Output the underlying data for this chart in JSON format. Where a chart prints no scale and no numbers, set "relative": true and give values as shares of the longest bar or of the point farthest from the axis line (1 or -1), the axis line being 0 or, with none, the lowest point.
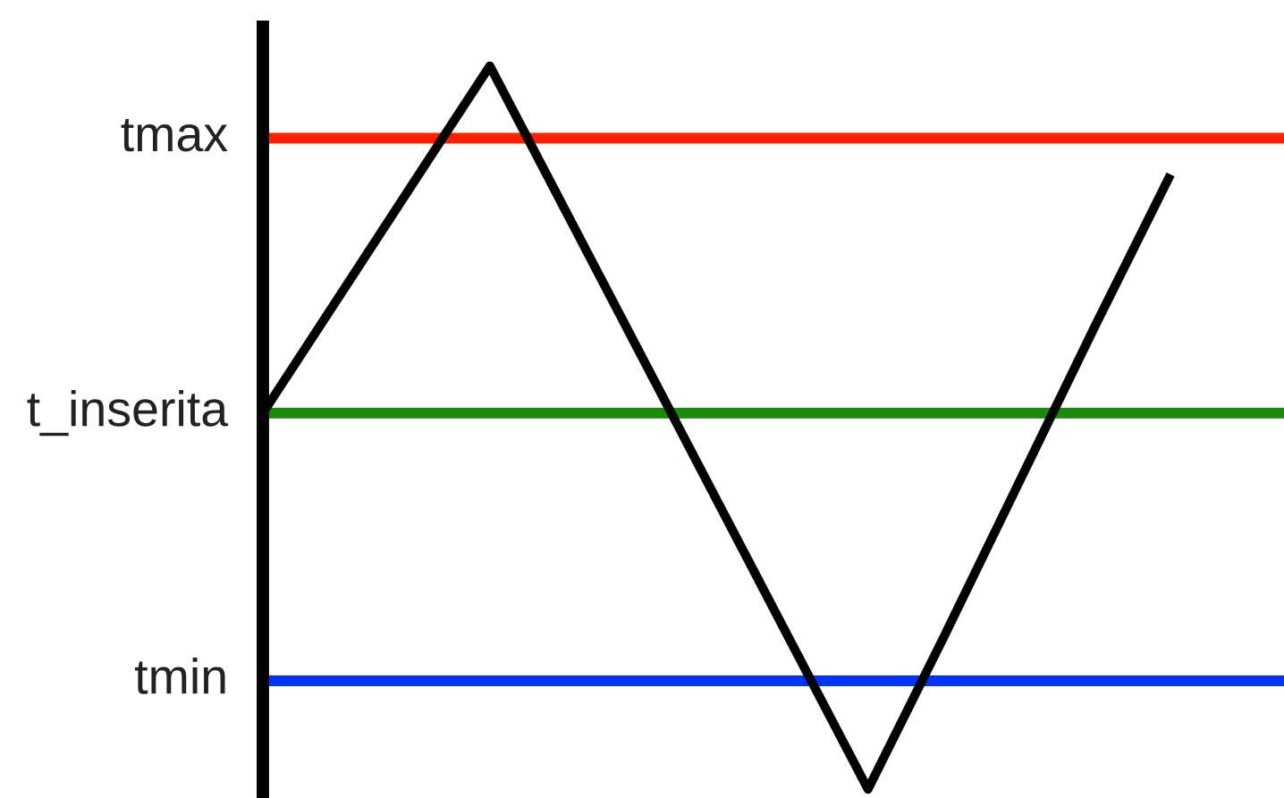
{
  "chart_data": {
    "type": "line",
    "relative": true,
    "categories": [
      null,
      null,
      null,
      null,
      null,
      null,
      null,
      null,
      null,
      null,
      null,
      null,
      null
    ],
    "series": [
      {
        "color": "#000000",
        "values": [
          0.52,
          0.68,
          0.84,
          1,
          0.8,
          0.6,
          0.4,
          0.2,
          0,
          0.21,
          0.425,
          0.64,
          0.85
        ]
      }
    ],
    "ref_lines": [
      {
        "axis": "y",
        "value": 0.9,
        "label": "tmax",
        "color": "#ff2000"
      },
      {
        "axis": "y",
        "value": 0.52,
        "label": "t_inserita",
        "color": "#1a8a0a"
      },
      {
        "axis": "y",
        "value": 0.15,
        "label": "tmin",
        "color": "#0033ff"
      }
    ],
    "marker": "none",
    "line_style": "solid"
  }
}
